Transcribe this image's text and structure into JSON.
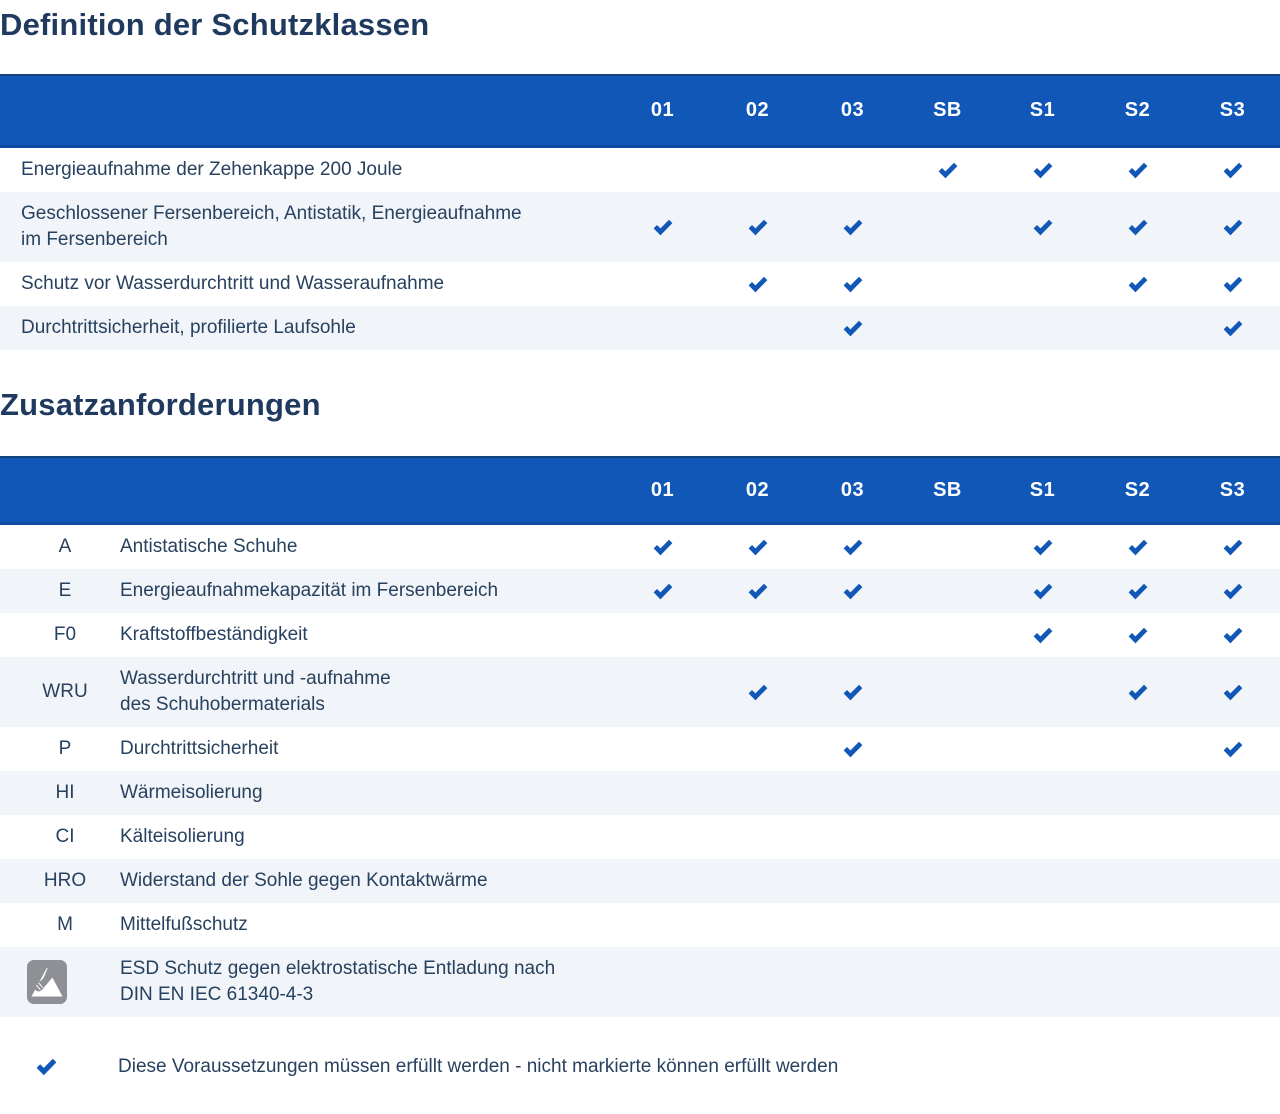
{
  "sections": [
    {
      "title": "Definition der Schutzklassen",
      "columns": [
        "01",
        "02",
        "03",
        "SB",
        "S1",
        "S2",
        "S3"
      ],
      "rows": [
        {
          "label": "Energieaufnahme der Zehenkappe 200 Joule",
          "checks": [
            "SB",
            "S1",
            "S2",
            "S3"
          ]
        },
        {
          "label": "Geschlossener Fersenbereich, Antistatik, Energieaufnahme\nim Fersenbereich",
          "checks": [
            "01",
            "02",
            "03",
            "S1",
            "S2",
            "S3"
          ]
        },
        {
          "label": "Schutz vor Wasserdurchtritt und Wasseraufnahme",
          "checks": [
            "02",
            "03",
            "S2",
            "S3"
          ]
        },
        {
          "label": "Durchtrittsicherheit, profilierte Laufsohle",
          "checks": [
            "03",
            "S3"
          ]
        }
      ]
    },
    {
      "title": "Zusatzanforderungen",
      "columns": [
        "01",
        "02",
        "03",
        "SB",
        "S1",
        "S2",
        "S3"
      ],
      "rows": [
        {
          "code": "A",
          "label": "Antistatische Schuhe",
          "checks": [
            "01",
            "02",
            "03",
            "S1",
            "S2",
            "S3"
          ]
        },
        {
          "code": "E",
          "label": "Energieaufnahmekapazität im Fersenbereich",
          "checks": [
            "01",
            "02",
            "03",
            "S1",
            "S2",
            "S3"
          ]
        },
        {
          "code": "F0",
          "label": "Kraftstoffbeständigkeit",
          "checks": [
            "S1",
            "S2",
            "S3"
          ]
        },
        {
          "code": "WRU",
          "label": "Wasserdurchtritt und -aufnahme\ndes Schuhobermaterials",
          "checks": [
            "02",
            "03",
            "S2",
            "S3"
          ]
        },
        {
          "code": "P",
          "label": "Durchtrittsicherheit",
          "checks": [
            "03",
            "S3"
          ]
        },
        {
          "code": "HI",
          "label": "Wärmeisolierung",
          "checks": []
        },
        {
          "code": "CI",
          "label": "Kälteisolierung",
          "checks": []
        },
        {
          "code": "HRO",
          "label": "Widerstand der Sohle gegen Kontaktwärme",
          "checks": []
        },
        {
          "code": "M",
          "label": "Mittelfußschutz",
          "checks": []
        },
        {
          "code": "",
          "icon": "esd-hand-triangle-icon",
          "label": "ESD Schutz gegen elektrostatische Entladung nach\nDIN EN IEC 61340-4-3",
          "checks": []
        }
      ]
    }
  ],
  "legend": {
    "icon": "check-icon",
    "text": "Diese Voraussetzungen müssen erfüllt werden - nicht markierte können erfüllt werden"
  },
  "colors": {
    "header_blue": "#1157B8",
    "check_blue": "#1157B8",
    "title_navy": "#1F3A5E",
    "body_text": "#27415F",
    "row_alt_gray": "#F1F4F8",
    "esd_icon_gray": "#8E9095"
  }
}
